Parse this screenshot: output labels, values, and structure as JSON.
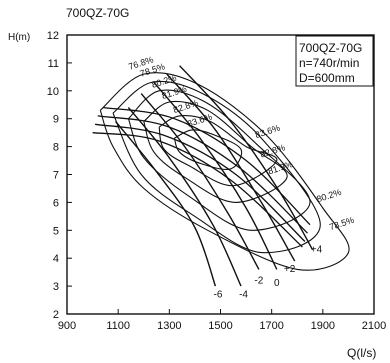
{
  "chart_data": {
    "type": "line",
    "title": "700QZ-70G",
    "ylabel": "H(m)",
    "xlabel": "Q(l/s)",
    "xlim": [
      900,
      2100
    ],
    "ylim": [
      2,
      12
    ],
    "x_ticks": [
      "900",
      "1100",
      "1300",
      "1500",
      "1700",
      "1900",
      "2100"
    ],
    "y_ticks": [
      "2",
      "3",
      "4",
      "5",
      "6",
      "7",
      "8",
      "9",
      "10",
      "11",
      "12"
    ],
    "grid": false,
    "legend_box": [
      "700QZ-70G",
      "n=740r/min",
      "D=600mm"
    ],
    "blade_angle_curves": [
      {
        "label": "-6",
        "points": [
          [
            1090,
            8.9
          ],
          [
            1250,
            7.1
          ],
          [
            1400,
            5.1
          ],
          [
            1480,
            3.0
          ]
        ],
        "label_at": [
          1490,
          2.6
        ]
      },
      {
        "label": "-4",
        "points": [
          [
            1140,
            9.4
          ],
          [
            1300,
            7.6
          ],
          [
            1470,
            5.2
          ],
          [
            1580,
            3.0
          ]
        ],
        "label_at": [
          1590,
          2.6
        ]
      },
      {
        "label": "-2",
        "points": [
          [
            1190,
            9.9
          ],
          [
            1360,
            8.0
          ],
          [
            1530,
            5.6
          ],
          [
            1650,
            3.6
          ]
        ],
        "label_at": [
          1650,
          3.1
        ]
      },
      {
        "label": "0",
        "points": [
          [
            1240,
            10.3
          ],
          [
            1420,
            8.3
          ],
          [
            1600,
            5.8
          ],
          [
            1720,
            3.6
          ]
        ],
        "label_at": [
          1720,
          3.0
        ]
      },
      {
        "label": "+2",
        "points": [
          [
            1290,
            10.6
          ],
          [
            1480,
            8.6
          ],
          [
            1660,
            6.0
          ],
          [
            1790,
            3.9
          ]
        ],
        "label_at": [
          1770,
          3.5
        ]
      },
      {
        "label": "+4",
        "points": [
          [
            1340,
            10.9
          ],
          [
            1540,
            8.9
          ],
          [
            1730,
            6.4
          ],
          [
            1860,
            4.3
          ]
        ],
        "label_at": [
          1875,
          4.2
        ]
      }
    ],
    "head_curve_lines": [
      {
        "points": [
          [
            1040,
            9.4
          ],
          [
            1320,
            9.0
          ],
          [
            1600,
            7.5
          ],
          [
            1850,
            5.2
          ]
        ]
      },
      {
        "points": [
          [
            1020,
            9.1
          ],
          [
            1300,
            8.7
          ],
          [
            1580,
            7.2
          ],
          [
            1840,
            4.9
          ]
        ]
      },
      {
        "points": [
          [
            1010,
            8.8
          ],
          [
            1280,
            8.4
          ],
          [
            1560,
            7.0
          ],
          [
            1830,
            4.6
          ]
        ]
      },
      {
        "points": [
          [
            1000,
            8.5
          ],
          [
            1260,
            8.2
          ],
          [
            1540,
            6.8
          ],
          [
            1820,
            4.4
          ]
        ]
      }
    ],
    "efficiency_contours": [
      {
        "label": "76.8%",
        "points": [
          [
            1030,
            9.3
          ],
          [
            1200,
            10.6
          ],
          [
            1420,
            10.2
          ],
          [
            1680,
            8.4
          ],
          [
            1900,
            5.8
          ],
          [
            2000,
            4.2
          ],
          [
            1800,
            3.6
          ],
          [
            1450,
            5.0
          ],
          [
            1200,
            6.5
          ],
          [
            1080,
            8.0
          ],
          [
            1030,
            9.3
          ]
        ],
        "label_at": [
          1145,
          10.75
        ]
      },
      {
        "label": "78.5%",
        "points": [
          [
            1080,
            9.2
          ],
          [
            1230,
            10.3
          ],
          [
            1430,
            9.9
          ],
          [
            1660,
            8.3
          ],
          [
            1890,
            5.2
          ],
          [
            1660,
            4.2
          ],
          [
            1400,
            5.5
          ],
          [
            1190,
            7.0
          ],
          [
            1080,
            9.2
          ]
        ],
        "label_at": [
          1190,
          10.5
        ]
      },
      {
        "label": "80.2%",
        "points": [
          [
            1140,
            9.0
          ],
          [
            1260,
            10.0
          ],
          [
            1440,
            9.6
          ],
          [
            1640,
            8.1
          ],
          [
            1850,
            6.0
          ],
          [
            1620,
            5.0
          ],
          [
            1380,
            6.2
          ],
          [
            1200,
            7.6
          ],
          [
            1140,
            9.0
          ]
        ],
        "label_at": [
          1235,
          10.1
        ]
      },
      {
        "label": "81.9%",
        "points": [
          [
            1200,
            8.9
          ],
          [
            1300,
            9.6
          ],
          [
            1450,
            9.3
          ],
          [
            1620,
            8.0
          ],
          [
            1760,
            6.9
          ],
          [
            1560,
            6.0
          ],
          [
            1360,
            6.9
          ],
          [
            1240,
            7.8
          ],
          [
            1200,
            8.9
          ]
        ],
        "label_at": [
          1275,
          9.7
        ]
      },
      {
        "label": "82.8%",
        "points": [
          [
            1260,
            8.7
          ],
          [
            1340,
            9.1
          ],
          [
            1460,
            8.9
          ],
          [
            1600,
            8.0
          ],
          [
            1720,
            7.5
          ],
          [
            1550,
            6.6
          ],
          [
            1380,
            7.3
          ],
          [
            1280,
            7.9
          ],
          [
            1260,
            8.7
          ]
        ],
        "label_at": [
          1320,
          9.2
        ]
      },
      {
        "label": "83.6%",
        "points": [
          [
            1320,
            8.3
          ],
          [
            1390,
            8.6
          ],
          [
            1480,
            8.4
          ],
          [
            1580,
            7.9
          ],
          [
            1540,
            7.2
          ],
          [
            1420,
            7.4
          ],
          [
            1340,
            7.8
          ],
          [
            1320,
            8.3
          ]
        ],
        "label_at": [
          1375,
          8.7
        ]
      }
    ],
    "efficiency_labels_right": [
      {
        "label": "83.6%",
        "at": [
          1640,
          8.3
        ]
      },
      {
        "label": "82.8%",
        "at": [
          1660,
          7.6
        ]
      },
      {
        "label": "81.9%",
        "at": [
          1690,
          7.0
        ]
      },
      {
        "label": "80.2%",
        "at": [
          1880,
          6.0
        ]
      },
      {
        "label": "78.5%",
        "at": [
          1930,
          5.0
        ]
      }
    ]
  }
}
